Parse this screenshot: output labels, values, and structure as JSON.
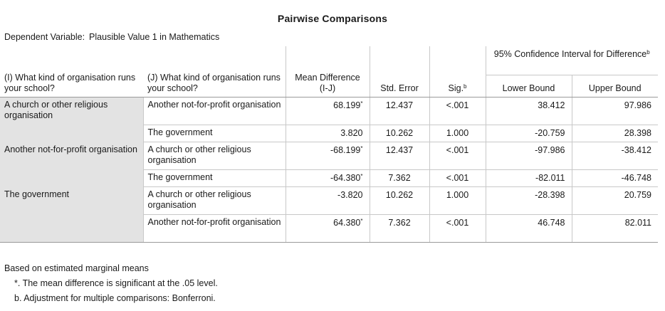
{
  "title": "Pairwise Comparisons",
  "dependent_variable": {
    "label": "Dependent Variable:",
    "value": "Plausible Value 1 in Mathematics"
  },
  "headers": {
    "i_col": "(I) What kind of organisation runs your school?",
    "j_col": "(J) What kind of organisation runs your school?",
    "mean_diff": "Mean Difference (I-J)",
    "std_error": "Std. Error",
    "sig": "Sig.",
    "sig_sup": "b",
    "ci_group": "95% Confidence Interval for Difference",
    "ci_sup": "b",
    "lower": "Lower Bound",
    "upper": "Upper Bound"
  },
  "groups": [
    {
      "i": "A church or other religious organisation",
      "rows": [
        {
          "j": "Another not-for-profit organisation",
          "mean": "68.199",
          "star": "*",
          "se": "12.437",
          "sig": "<.001",
          "lower": "38.412",
          "upper": "97.986"
        },
        {
          "j": "The government",
          "mean": "3.820",
          "star": "",
          "se": "10.262",
          "sig": "1.000",
          "lower": "-20.759",
          "upper": "28.398"
        }
      ]
    },
    {
      "i": "Another not-for-profit organisation",
      "rows": [
        {
          "j": "A church or other religious organisation",
          "mean": "-68.199",
          "star": "*",
          "se": "12.437",
          "sig": "<.001",
          "lower": "-97.986",
          "upper": "-38.412"
        },
        {
          "j": "The government",
          "mean": "-64.380",
          "star": "*",
          "se": "7.362",
          "sig": "<.001",
          "lower": "-82.011",
          "upper": "-46.748"
        }
      ]
    },
    {
      "i": "The government",
      "rows": [
        {
          "j": "A church or other religious organisation",
          "mean": "-3.820",
          "star": "",
          "se": "10.262",
          "sig": "1.000",
          "lower": "-28.398",
          "upper": "20.759"
        },
        {
          "j": "Another not-for-profit organisation",
          "mean": "64.380",
          "star": "*",
          "se": "7.362",
          "sig": "<.001",
          "lower": "46.748",
          "upper": "82.011"
        }
      ]
    }
  ],
  "notes": {
    "based_on": "Based on estimated marginal means",
    "star_note": "*. The mean difference is significant at the .05 level.",
    "adj_note": "b. Adjustment for multiple comparisons: Bonferroni."
  },
  "colors": {
    "row_label_bg": "#e3e3e3",
    "grid": "#c8c8c8"
  }
}
